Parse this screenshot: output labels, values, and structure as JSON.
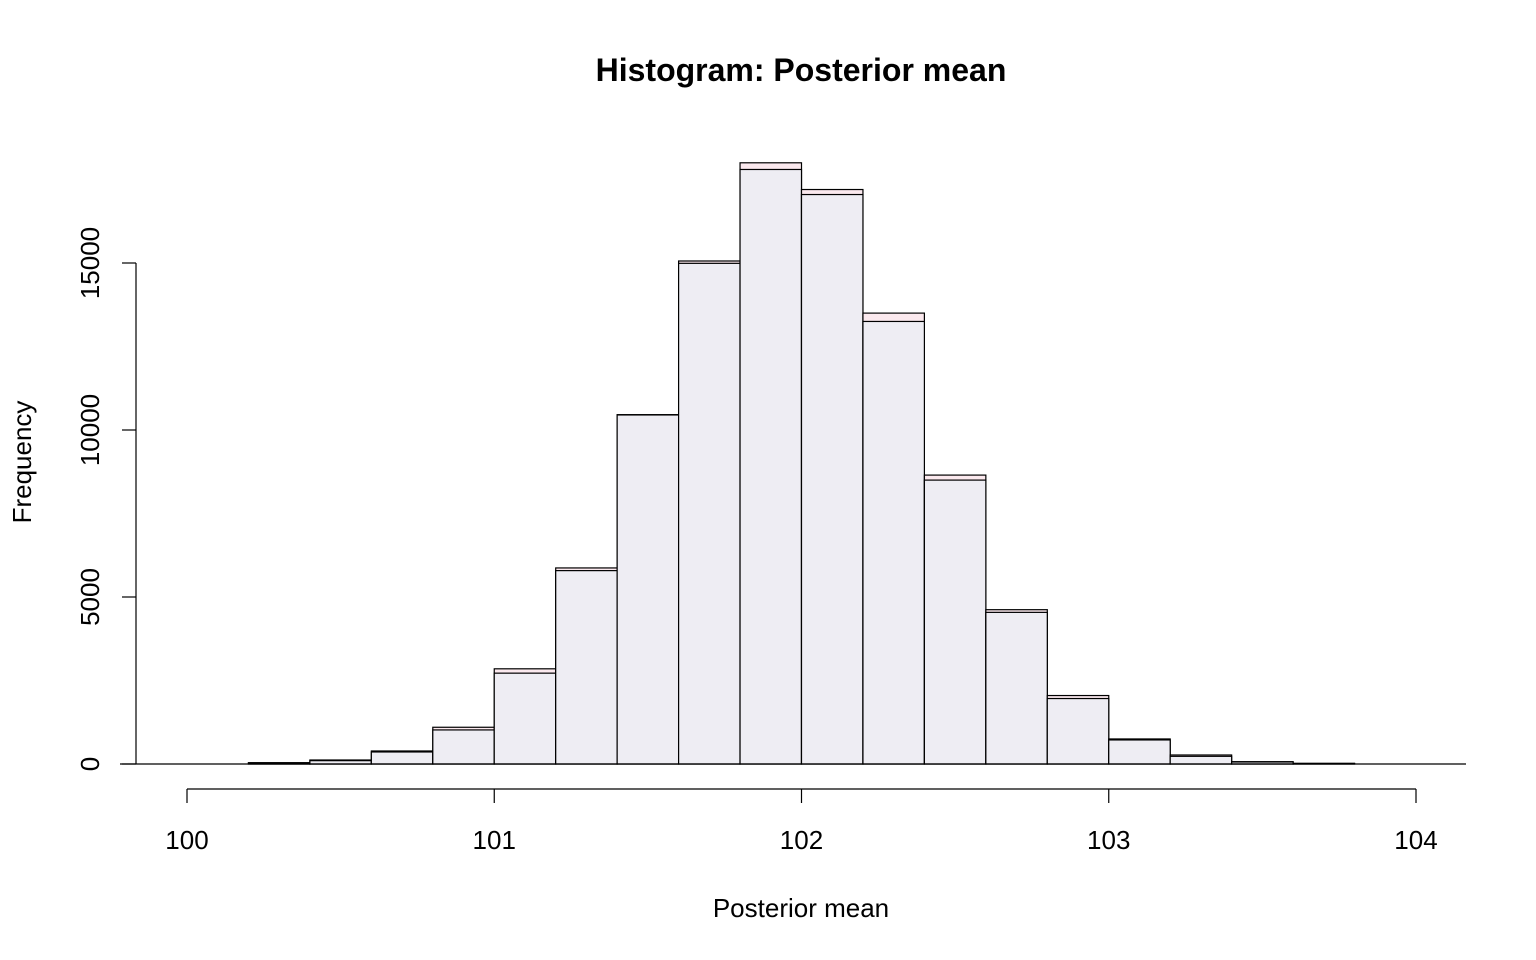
{
  "chart_data": {
    "type": "bar",
    "title": "Histogram: Posterior mean",
    "xlabel": "Posterior mean",
    "ylabel": "Frequency",
    "xlim": [
      100,
      104
    ],
    "ylim": [
      0,
      18000
    ],
    "x_ticks": [
      "100",
      "101",
      "102",
      "103",
      "104"
    ],
    "y_ticks": [
      "0",
      "5000",
      "10000",
      "15000"
    ],
    "bin_width": 0.2,
    "bins": [
      {
        "start": 100.2,
        "end": 100.4,
        "value": 40,
        "overlay": 30
      },
      {
        "start": 100.4,
        "end": 100.6,
        "value": 120,
        "overlay": 100
      },
      {
        "start": 100.6,
        "end": 100.8,
        "value": 390,
        "overlay": 360
      },
      {
        "start": 100.8,
        "end": 101.0,
        "value": 1100,
        "overlay": 1020
      },
      {
        "start": 101.0,
        "end": 101.2,
        "value": 2850,
        "overlay": 2720
      },
      {
        "start": 101.2,
        "end": 101.4,
        "value": 5870,
        "overlay": 5790
      },
      {
        "start": 101.4,
        "end": 101.6,
        "value": 10460,
        "overlay": 10450
      },
      {
        "start": 101.6,
        "end": 101.8,
        "value": 15060,
        "overlay": 14990
      },
      {
        "start": 101.8,
        "end": 102.0,
        "value": 18000,
        "overlay": 17800
      },
      {
        "start": 102.0,
        "end": 102.2,
        "value": 17200,
        "overlay": 17050
      },
      {
        "start": 102.2,
        "end": 102.4,
        "value": 13500,
        "overlay": 13250
      },
      {
        "start": 102.4,
        "end": 102.6,
        "value": 8650,
        "overlay": 8500
      },
      {
        "start": 102.6,
        "end": 102.8,
        "value": 4620,
        "overlay": 4540
      },
      {
        "start": 102.8,
        "end": 103.0,
        "value": 2050,
        "overlay": 1960
      },
      {
        "start": 103.0,
        "end": 103.2,
        "value": 750,
        "overlay": 720
      },
      {
        "start": 103.2,
        "end": 103.4,
        "value": 270,
        "overlay": 230
      },
      {
        "start": 103.4,
        "end": 103.6,
        "value": 70,
        "overlay": 60
      },
      {
        "start": 103.6,
        "end": 103.8,
        "value": 20,
        "overlay": 15
      }
    ],
    "colors": {
      "bar_fill": "#eeedf3",
      "bar_back_fill": "#fbe9ee",
      "stroke": "#000000"
    },
    "grid": false,
    "legend": "none"
  }
}
